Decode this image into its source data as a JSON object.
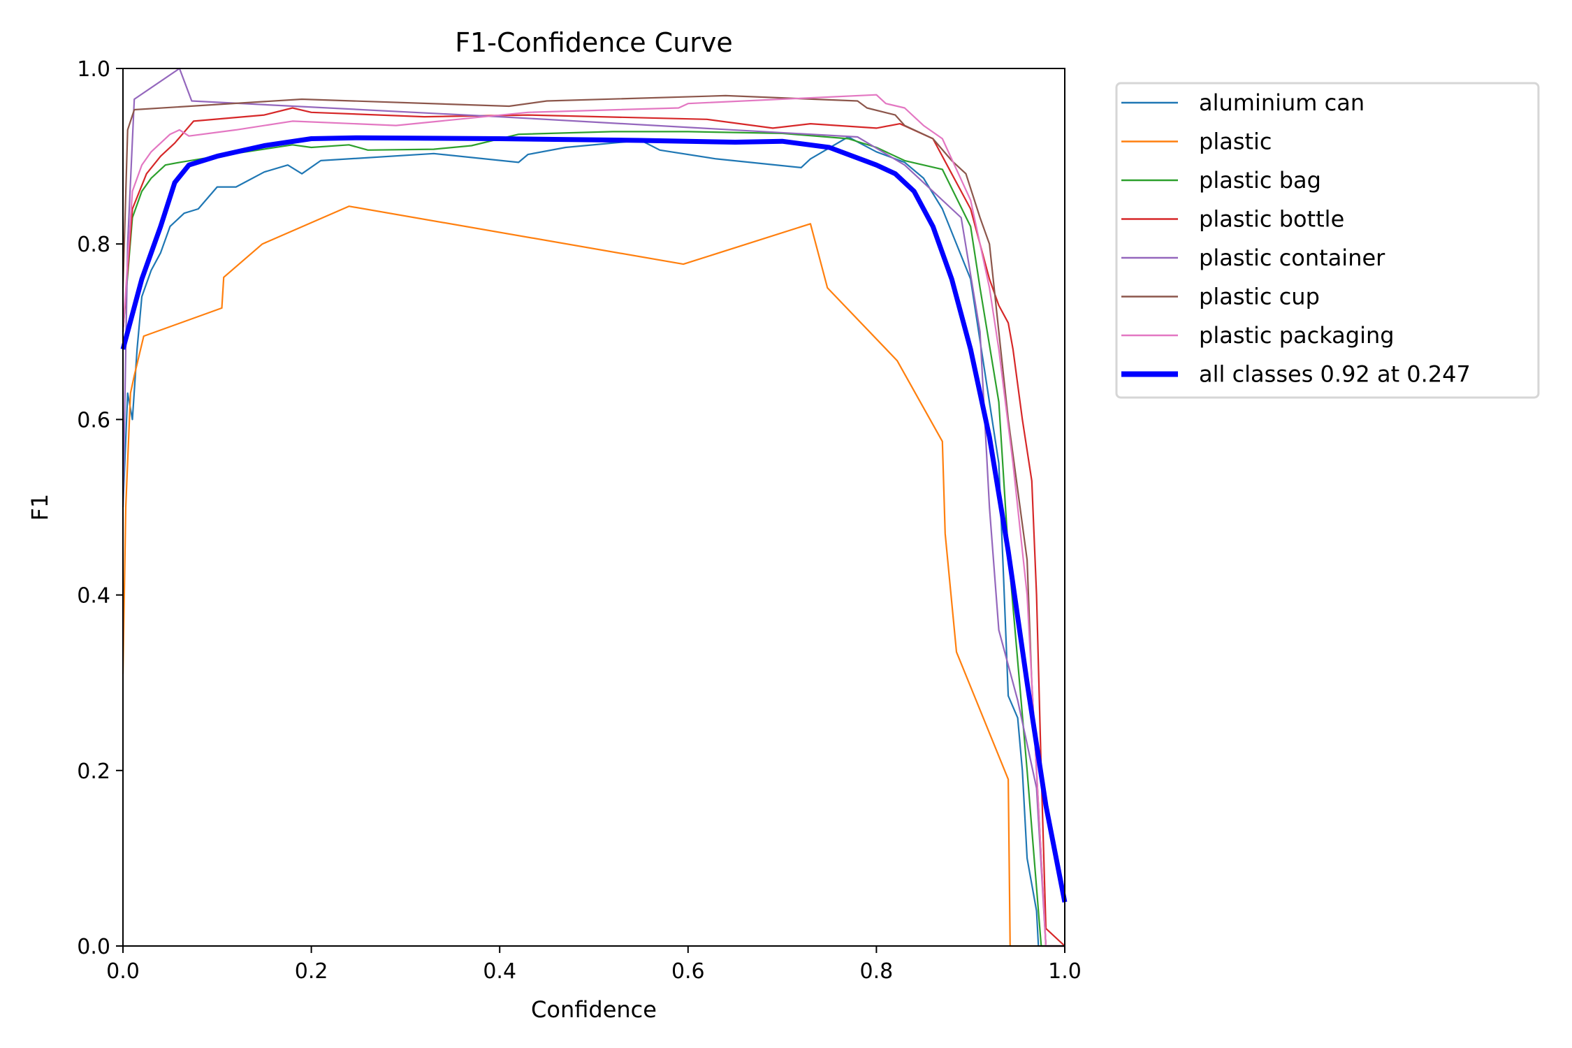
{
  "chart_data": {
    "type": "line",
    "title": "F1-Confidence Curve",
    "xlabel": "Confidence",
    "ylabel": "F1",
    "xlim": [
      0,
      1
    ],
    "ylim": [
      0,
      1
    ],
    "xticks": [
      "0.0",
      "0.2",
      "0.4",
      "0.6",
      "0.8",
      "1.0"
    ],
    "yticks": [
      "0.0",
      "0.2",
      "0.4",
      "0.6",
      "0.8",
      "1.0"
    ],
    "grid": false,
    "legend_placement": "outside-top-right",
    "series": [
      {
        "name": "aluminium can",
        "color": "#1f77b4",
        "points": [
          [
            0,
            0.5
          ],
          [
            0.005,
            0.63
          ],
          [
            0.01,
            0.6
          ],
          [
            0.015,
            0.68
          ],
          [
            0.02,
            0.74
          ],
          [
            0.03,
            0.77
          ],
          [
            0.04,
            0.79
          ],
          [
            0.05,
            0.82
          ],
          [
            0.065,
            0.835
          ],
          [
            0.08,
            0.84
          ],
          [
            0.1,
            0.865
          ],
          [
            0.12,
            0.865
          ],
          [
            0.15,
            0.882
          ],
          [
            0.175,
            0.89
          ],
          [
            0.19,
            0.88
          ],
          [
            0.21,
            0.895
          ],
          [
            0.33,
            0.903
          ],
          [
            0.42,
            0.893
          ],
          [
            0.43,
            0.902
          ],
          [
            0.47,
            0.91
          ],
          [
            0.55,
            0.918
          ],
          [
            0.57,
            0.907
          ],
          [
            0.63,
            0.897
          ],
          [
            0.72,
            0.887
          ],
          [
            0.73,
            0.897
          ],
          [
            0.77,
            0.922
          ],
          [
            0.8,
            0.905
          ],
          [
            0.83,
            0.893
          ],
          [
            0.85,
            0.875
          ],
          [
            0.87,
            0.84
          ],
          [
            0.9,
            0.76
          ],
          [
            0.93,
            0.55
          ],
          [
            0.935,
            0.42
          ],
          [
            0.94,
            0.285
          ],
          [
            0.95,
            0.26
          ],
          [
            0.955,
            0.2
          ],
          [
            0.96,
            0.1
          ],
          [
            0.97,
            0.04
          ],
          [
            0.972,
            0
          ],
          [
            1,
            0
          ]
        ]
      },
      {
        "name": "plastic",
        "color": "#ff7f0e",
        "points": [
          [
            0,
            0.31
          ],
          [
            0.003,
            0.5
          ],
          [
            0.008,
            0.63
          ],
          [
            0.012,
            0.65
          ],
          [
            0.022,
            0.695
          ],
          [
            0.105,
            0.727
          ],
          [
            0.107,
            0.762
          ],
          [
            0.148,
            0.8
          ],
          [
            0.24,
            0.843
          ],
          [
            0.595,
            0.777
          ],
          [
            0.73,
            0.823
          ],
          [
            0.748,
            0.75
          ],
          [
            0.822,
            0.667
          ],
          [
            0.87,
            0.575
          ],
          [
            0.873,
            0.47
          ],
          [
            0.885,
            0.335
          ],
          [
            0.94,
            0.19
          ],
          [
            0.942,
            0
          ],
          [
            1,
            0
          ]
        ]
      },
      {
        "name": "plastic bag",
        "color": "#2ca02c",
        "points": [
          [
            0,
            0.7
          ],
          [
            0.01,
            0.83
          ],
          [
            0.02,
            0.86
          ],
          [
            0.03,
            0.875
          ],
          [
            0.045,
            0.89
          ],
          [
            0.06,
            0.893
          ],
          [
            0.1,
            0.9
          ],
          [
            0.18,
            0.913
          ],
          [
            0.2,
            0.91
          ],
          [
            0.24,
            0.913
          ],
          [
            0.26,
            0.907
          ],
          [
            0.33,
            0.908
          ],
          [
            0.37,
            0.912
          ],
          [
            0.42,
            0.925
          ],
          [
            0.52,
            0.928
          ],
          [
            0.6,
            0.928
          ],
          [
            0.7,
            0.926
          ],
          [
            0.77,
            0.92
          ],
          [
            0.8,
            0.91
          ],
          [
            0.83,
            0.895
          ],
          [
            0.87,
            0.885
          ],
          [
            0.9,
            0.82
          ],
          [
            0.91,
            0.75
          ],
          [
            0.93,
            0.62
          ],
          [
            0.94,
            0.45
          ],
          [
            0.96,
            0.2
          ],
          [
            0.975,
            0
          ],
          [
            1,
            0
          ]
        ]
      },
      {
        "name": "plastic bottle",
        "color": "#d62728",
        "points": [
          [
            0,
            0.7
          ],
          [
            0.01,
            0.84
          ],
          [
            0.025,
            0.88
          ],
          [
            0.04,
            0.9
          ],
          [
            0.055,
            0.915
          ],
          [
            0.075,
            0.94
          ],
          [
            0.15,
            0.947
          ],
          [
            0.18,
            0.955
          ],
          [
            0.2,
            0.95
          ],
          [
            0.32,
            0.945
          ],
          [
            0.43,
            0.947
          ],
          [
            0.62,
            0.942
          ],
          [
            0.69,
            0.932
          ],
          [
            0.73,
            0.937
          ],
          [
            0.8,
            0.932
          ],
          [
            0.825,
            0.937
          ],
          [
            0.86,
            0.92
          ],
          [
            0.88,
            0.88
          ],
          [
            0.9,
            0.84
          ],
          [
            0.92,
            0.76
          ],
          [
            0.93,
            0.73
          ],
          [
            0.94,
            0.71
          ],
          [
            0.945,
            0.68
          ],
          [
            0.955,
            0.6
          ],
          [
            0.965,
            0.53
          ],
          [
            0.97,
            0.4
          ],
          [
            0.975,
            0.2
          ],
          [
            0.98,
            0.02
          ],
          [
            1,
            0
          ]
        ]
      },
      {
        "name": "plastic container",
        "color": "#9467bd",
        "points": [
          [
            0,
            0.5
          ],
          [
            0.005,
            0.8
          ],
          [
            0.012,
            0.965
          ],
          [
            0.06,
            1.0
          ],
          [
            0.073,
            0.963
          ],
          [
            0.4,
            0.945
          ],
          [
            0.78,
            0.922
          ],
          [
            0.83,
            0.89
          ],
          [
            0.89,
            0.83
          ],
          [
            0.91,
            0.7
          ],
          [
            0.92,
            0.5
          ],
          [
            0.93,
            0.36
          ],
          [
            0.95,
            0.28
          ],
          [
            0.97,
            0.18
          ],
          [
            0.98,
            0
          ],
          [
            1,
            0
          ]
        ]
      },
      {
        "name": "plastic cup",
        "color": "#8c564b",
        "points": [
          [
            0,
            0.75
          ],
          [
            0.005,
            0.93
          ],
          [
            0.012,
            0.953
          ],
          [
            0.19,
            0.965
          ],
          [
            0.41,
            0.957
          ],
          [
            0.45,
            0.963
          ],
          [
            0.64,
            0.969
          ],
          [
            0.78,
            0.963
          ],
          [
            0.79,
            0.955
          ],
          [
            0.82,
            0.947
          ],
          [
            0.83,
            0.935
          ],
          [
            0.86,
            0.92
          ],
          [
            0.88,
            0.895
          ],
          [
            0.895,
            0.88
          ],
          [
            0.91,
            0.83
          ],
          [
            0.92,
            0.8
          ],
          [
            0.93,
            0.7
          ],
          [
            0.94,
            0.6
          ],
          [
            0.95,
            0.52
          ],
          [
            0.96,
            0.44
          ],
          [
            0.965,
            0.3
          ],
          [
            0.975,
            0.1
          ],
          [
            0.98,
            0
          ],
          [
            1,
            0
          ]
        ]
      },
      {
        "name": "plastic packaging",
        "color": "#e377c2",
        "points": [
          [
            0,
            0.7
          ],
          [
            0.01,
            0.86
          ],
          [
            0.02,
            0.89
          ],
          [
            0.03,
            0.905
          ],
          [
            0.05,
            0.925
          ],
          [
            0.06,
            0.93
          ],
          [
            0.07,
            0.923
          ],
          [
            0.12,
            0.93
          ],
          [
            0.18,
            0.94
          ],
          [
            0.29,
            0.935
          ],
          [
            0.43,
            0.95
          ],
          [
            0.59,
            0.955
          ],
          [
            0.6,
            0.96
          ],
          [
            0.8,
            0.97
          ],
          [
            0.81,
            0.96
          ],
          [
            0.83,
            0.955
          ],
          [
            0.85,
            0.935
          ],
          [
            0.87,
            0.92
          ],
          [
            0.9,
            0.85
          ],
          [
            0.92,
            0.75
          ],
          [
            0.93,
            0.68
          ],
          [
            0.945,
            0.55
          ],
          [
            0.96,
            0.4
          ],
          [
            0.97,
            0.2
          ],
          [
            0.98,
            0
          ],
          [
            1,
            0
          ]
        ]
      },
      {
        "name": "all classes 0.92 at 0.247",
        "color": "#0000ff",
        "bold": true,
        "points": [
          [
            0,
            0.68
          ],
          [
            0.02,
            0.76
          ],
          [
            0.04,
            0.82
          ],
          [
            0.055,
            0.87
          ],
          [
            0.07,
            0.89
          ],
          [
            0.1,
            0.9
          ],
          [
            0.15,
            0.912
          ],
          [
            0.2,
            0.92
          ],
          [
            0.25,
            0.921
          ],
          [
            0.4,
            0.92
          ],
          [
            0.55,
            0.918
          ],
          [
            0.65,
            0.916
          ],
          [
            0.7,
            0.917
          ],
          [
            0.75,
            0.91
          ],
          [
            0.8,
            0.89
          ],
          [
            0.82,
            0.88
          ],
          [
            0.84,
            0.86
          ],
          [
            0.86,
            0.82
          ],
          [
            0.88,
            0.76
          ],
          [
            0.9,
            0.68
          ],
          [
            0.92,
            0.58
          ],
          [
            0.94,
            0.45
          ],
          [
            0.96,
            0.3
          ],
          [
            0.98,
            0.16
          ],
          [
            1,
            0.05
          ]
        ]
      }
    ]
  }
}
